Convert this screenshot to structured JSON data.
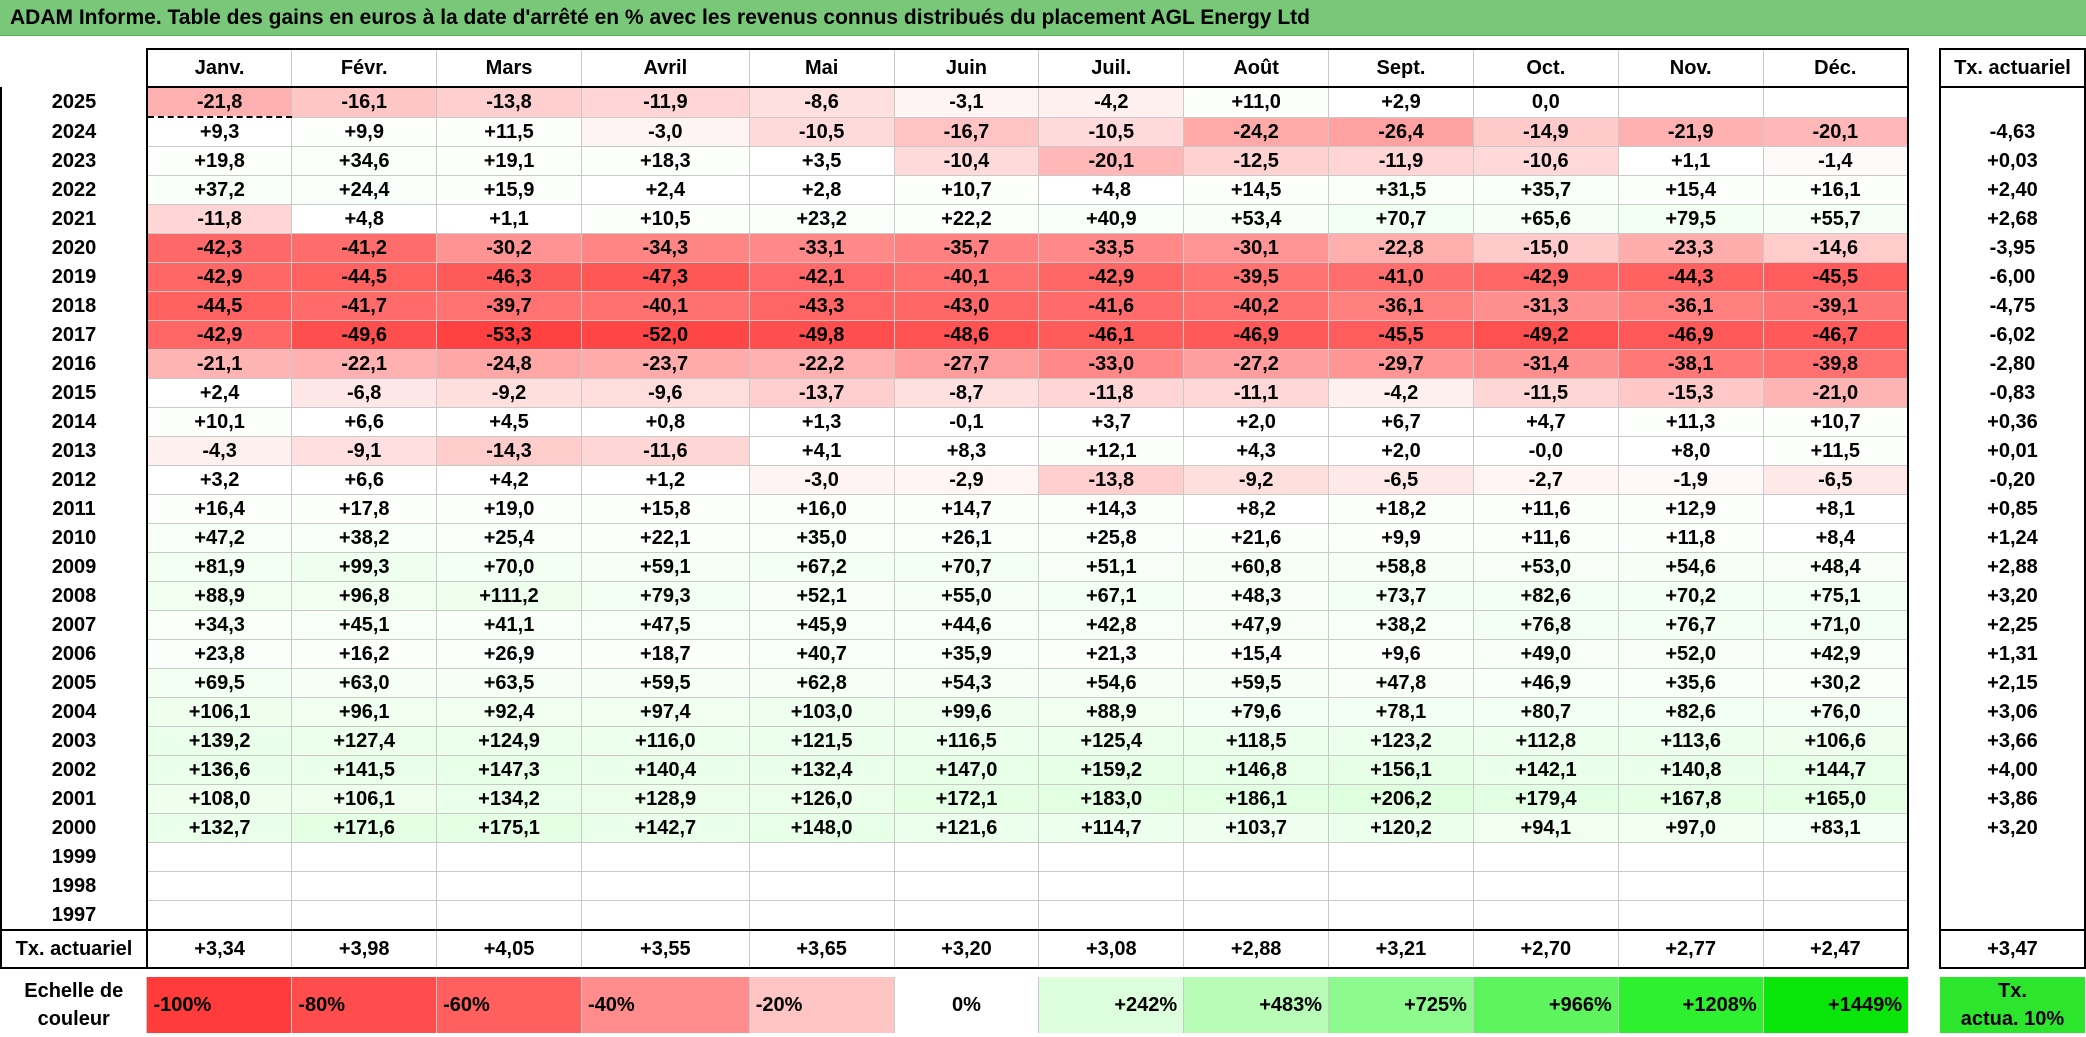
{
  "title": "ADAM Informe. Table des gains en euros à la date d'arrêté en % avec les revenus connus distribués du placement AGL Energy Ltd",
  "months": [
    "Janv.",
    "Févr.",
    "Mars",
    "Avril",
    "Mai",
    "Juin",
    "Juil.",
    "Août",
    "Sept.",
    "Oct.",
    "Nov.",
    "Déc."
  ],
  "rate_header": "Tx. actuariel",
  "rows": [
    {
      "year": "2025",
      "values": [
        "-21,8",
        "-16,1",
        "-13,8",
        "-11,9",
        "-8,6",
        "-3,1",
        "-4,2",
        "+11,0",
        "+2,9",
        "0,0",
        "",
        ""
      ],
      "rate": ""
    },
    {
      "year": "2024",
      "values": [
        "+9,3",
        "+9,9",
        "+11,5",
        "-3,0",
        "-10,5",
        "-16,7",
        "-10,5",
        "-24,2",
        "-26,4",
        "-14,9",
        "-21,9",
        "-20,1"
      ],
      "rate": "-4,63"
    },
    {
      "year": "2023",
      "values": [
        "+19,8",
        "+34,6",
        "+19,1",
        "+18,3",
        "+3,5",
        "-10,4",
        "-20,1",
        "-12,5",
        "-11,9",
        "-10,6",
        "+1,1",
        "-1,4"
      ],
      "rate": "+0,03"
    },
    {
      "year": "2022",
      "values": [
        "+37,2",
        "+24,4",
        "+15,9",
        "+2,4",
        "+2,8",
        "+10,7",
        "+4,8",
        "+14,5",
        "+31,5",
        "+35,7",
        "+15,4",
        "+16,1"
      ],
      "rate": "+2,40"
    },
    {
      "year": "2021",
      "values": [
        "-11,8",
        "+4,8",
        "+1,1",
        "+10,5",
        "+23,2",
        "+22,2",
        "+40,9",
        "+53,4",
        "+70,7",
        "+65,6",
        "+79,5",
        "+55,7"
      ],
      "rate": "+2,68"
    },
    {
      "year": "2020",
      "values": [
        "-42,3",
        "-41,2",
        "-30,2",
        "-34,3",
        "-33,1",
        "-35,7",
        "-33,5",
        "-30,1",
        "-22,8",
        "-15,0",
        "-23,3",
        "-14,6"
      ],
      "rate": "-3,95"
    },
    {
      "year": "2019",
      "values": [
        "-42,9",
        "-44,5",
        "-46,3",
        "-47,3",
        "-42,1",
        "-40,1",
        "-42,9",
        "-39,5",
        "-41,0",
        "-42,9",
        "-44,3",
        "-45,5"
      ],
      "rate": "-6,00"
    },
    {
      "year": "2018",
      "values": [
        "-44,5",
        "-41,7",
        "-39,7",
        "-40,1",
        "-43,3",
        "-43,0",
        "-41,6",
        "-40,2",
        "-36,1",
        "-31,3",
        "-36,1",
        "-39,1"
      ],
      "rate": "-4,75"
    },
    {
      "year": "2017",
      "values": [
        "-42,9",
        "-49,6",
        "-53,3",
        "-52,0",
        "-49,8",
        "-48,6",
        "-46,1",
        "-46,9",
        "-45,5",
        "-49,2",
        "-46,9",
        "-46,7"
      ],
      "rate": "-6,02"
    },
    {
      "year": "2016",
      "values": [
        "-21,1",
        "-22,1",
        "-24,8",
        "-23,7",
        "-22,2",
        "-27,7",
        "-33,0",
        "-27,2",
        "-29,7",
        "-31,4",
        "-38,1",
        "-39,8"
      ],
      "rate": "-2,80"
    },
    {
      "year": "2015",
      "values": [
        "+2,4",
        "-6,8",
        "-9,2",
        "-9,6",
        "-13,7",
        "-8,7",
        "-11,8",
        "-11,1",
        "-4,2",
        "-11,5",
        "-15,3",
        "-21,0"
      ],
      "rate": "-0,83"
    },
    {
      "year": "2014",
      "values": [
        "+10,1",
        "+6,6",
        "+4,5",
        "+0,8",
        "+1,3",
        "-0,1",
        "+3,7",
        "+2,0",
        "+6,7",
        "+4,7",
        "+11,3",
        "+10,7"
      ],
      "rate": "+0,36"
    },
    {
      "year": "2013",
      "values": [
        "-4,3",
        "-9,1",
        "-14,3",
        "-11,6",
        "+4,1",
        "+8,3",
        "+12,1",
        "+4,3",
        "+2,0",
        "-0,0",
        "+8,0",
        "+11,5"
      ],
      "rate": "+0,01"
    },
    {
      "year": "2012",
      "values": [
        "+3,2",
        "+6,6",
        "+4,2",
        "+1,2",
        "-3,0",
        "-2,9",
        "-13,8",
        "-9,2",
        "-6,5",
        "-2,7",
        "-1,9",
        "-6,5"
      ],
      "rate": "-0,20"
    },
    {
      "year": "2011",
      "values": [
        "+16,4",
        "+17,8",
        "+19,0",
        "+15,8",
        "+16,0",
        "+14,7",
        "+14,3",
        "+8,2",
        "+18,2",
        "+11,6",
        "+12,9",
        "+8,1"
      ],
      "rate": "+0,85"
    },
    {
      "year": "2010",
      "values": [
        "+47,2",
        "+38,2",
        "+25,4",
        "+22,1",
        "+35,0",
        "+26,1",
        "+25,8",
        "+21,6",
        "+9,9",
        "+11,6",
        "+11,8",
        "+8,4"
      ],
      "rate": "+1,24"
    },
    {
      "year": "2009",
      "values": [
        "+81,9",
        "+99,3",
        "+70,0",
        "+59,1",
        "+67,2",
        "+70,7",
        "+51,1",
        "+60,8",
        "+58,8",
        "+53,0",
        "+54,6",
        "+48,4"
      ],
      "rate": "+2,88"
    },
    {
      "year": "2008",
      "values": [
        "+88,9",
        "+96,8",
        "+111,2",
        "+79,3",
        "+52,1",
        "+55,0",
        "+67,1",
        "+48,3",
        "+73,7",
        "+82,6",
        "+70,2",
        "+75,1"
      ],
      "rate": "+3,20"
    },
    {
      "year": "2007",
      "values": [
        "+34,3",
        "+45,1",
        "+41,1",
        "+47,5",
        "+45,9",
        "+44,6",
        "+42,8",
        "+47,9",
        "+38,2",
        "+76,8",
        "+76,7",
        "+71,0"
      ],
      "rate": "+2,25"
    },
    {
      "year": "2006",
      "values": [
        "+23,8",
        "+16,2",
        "+26,9",
        "+18,7",
        "+40,7",
        "+35,9",
        "+21,3",
        "+15,4",
        "+9,6",
        "+49,0",
        "+52,0",
        "+42,9"
      ],
      "rate": "+1,31"
    },
    {
      "year": "2005",
      "values": [
        "+69,5",
        "+63,0",
        "+63,5",
        "+59,5",
        "+62,8",
        "+54,3",
        "+54,6",
        "+59,5",
        "+47,8",
        "+46,9",
        "+35,6",
        "+30,2"
      ],
      "rate": "+2,15"
    },
    {
      "year": "2004",
      "values": [
        "+106,1",
        "+96,1",
        "+92,4",
        "+97,4",
        "+103,0",
        "+99,6",
        "+88,9",
        "+79,6",
        "+78,1",
        "+80,7",
        "+82,6",
        "+76,0"
      ],
      "rate": "+3,06"
    },
    {
      "year": "2003",
      "values": [
        "+139,2",
        "+127,4",
        "+124,9",
        "+116,0",
        "+121,5",
        "+116,5",
        "+125,4",
        "+118,5",
        "+123,2",
        "+112,8",
        "+113,6",
        "+106,6"
      ],
      "rate": "+3,66"
    },
    {
      "year": "2002",
      "values": [
        "+136,6",
        "+141,5",
        "+147,3",
        "+140,4",
        "+132,4",
        "+147,0",
        "+159,2",
        "+146,8",
        "+156,1",
        "+142,1",
        "+140,8",
        "+144,7"
      ],
      "rate": "+4,00"
    },
    {
      "year": "2001",
      "values": [
        "+108,0",
        "+106,1",
        "+134,2",
        "+128,9",
        "+126,0",
        "+172,1",
        "+183,0",
        "+186,1",
        "+206,2",
        "+179,4",
        "+167,8",
        "+165,0"
      ],
      "rate": "+3,86"
    },
    {
      "year": "2000",
      "values": [
        "+132,7",
        "+171,6",
        "+175,1",
        "+142,7",
        "+148,0",
        "+121,6",
        "+114,7",
        "+103,7",
        "+120,2",
        "+94,1",
        "+97,0",
        "+83,1"
      ],
      "rate": "+3,20"
    },
    {
      "year": "1999",
      "values": [
        "",
        "",
        "",
        "",
        "",
        "",
        "",
        "",
        "",
        "",
        "",
        ""
      ],
      "rate": ""
    },
    {
      "year": "1998",
      "values": [
        "",
        "",
        "",
        "",
        "",
        "",
        "",
        "",
        "",
        "",
        "",
        ""
      ],
      "rate": ""
    },
    {
      "year": "1997",
      "values": [
        "",
        "",
        "",
        "",
        "",
        "",
        "",
        "",
        "",
        "",
        "",
        ""
      ],
      "rate": ""
    }
  ],
  "summary": {
    "label": "Tx. actuariel",
    "values": [
      "+3,34",
      "+3,98",
      "+4,05",
      "+3,55",
      "+3,65",
      "+3,20",
      "+3,08",
      "+2,88",
      "+3,21",
      "+2,70",
      "+2,77",
      "+2,47"
    ],
    "total": "+3,47"
  },
  "scale": {
    "label_line1": "Echelle de",
    "label_line2": "couleur",
    "steps": [
      {
        "text": "-100%",
        "color": "#ff3b3b"
      },
      {
        "text": "-80%",
        "color": "#ff4d4d"
      },
      {
        "text": "-60%",
        "color": "#ff5f5f"
      },
      {
        "text": "-40%",
        "color": "#ff8c8c"
      },
      {
        "text": "-20%",
        "color": "#ffc4c4"
      },
      {
        "text": "0%",
        "color": "#ffffff"
      },
      {
        "text": "+242%",
        "color": "#ddfedd"
      },
      {
        "text": "+483%",
        "color": "#b8fcb8"
      },
      {
        "text": "+725%",
        "color": "#8cfa8c"
      },
      {
        "text": "+966%",
        "color": "#5ef45e"
      },
      {
        "text": "+1208%",
        "color": "#2ef02e"
      },
      {
        "text": "+1449%",
        "color": "#0ae60a"
      }
    ],
    "rate_label_line1": "Tx.",
    "rate_label_line2": "actua. 10%",
    "rate_color": "#2ee52e"
  },
  "colors": {
    "title_bg": "#79c879",
    "negative": "#ff3b3b",
    "positive": "#0ae60a"
  }
}
